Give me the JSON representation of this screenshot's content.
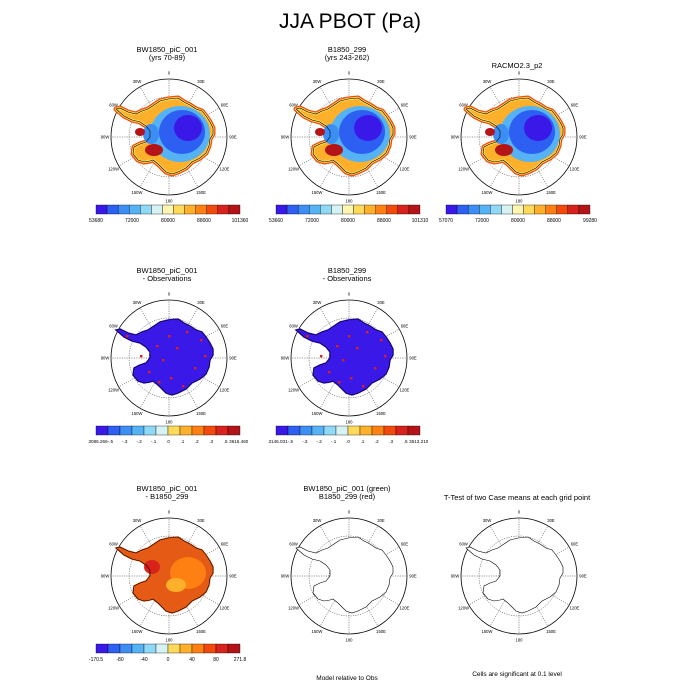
{
  "title": "JJA PBOT (Pa)",
  "lon_labels": [
    "0",
    "30E",
    "60E",
    "90E",
    "120E",
    "150E",
    "180",
    "150W",
    "120W",
    "90W",
    "60W",
    "30W"
  ],
  "colors": {
    "diverging": [
      "#3a18e8",
      "#2c5ff2",
      "#3c8ef4",
      "#55b3f5",
      "#8fd8f6",
      "#d6f2f2",
      "#fff5b0",
      "#ffd95a",
      "#ffb02a",
      "#ff8012",
      "#f24a0a",
      "#d8221c",
      "#b41418"
    ],
    "observations_fill": "#3a18e8",
    "difference_fill": "#e55a14"
  },
  "panels": [
    {
      "title": "BW1850_piC_001\n(yrs 70-89)",
      "kind": "model",
      "colorbar": [
        "53680",
        "72000",
        "80000",
        "88000",
        "101360"
      ]
    },
    {
      "title": "B1850_299\n(yrs 243-262)",
      "kind": "model",
      "colorbar": [
        "53660",
        "72000",
        "80000",
        "88000",
        "101310"
      ]
    },
    {
      "title": "RACMO2.3_p2",
      "kind": "model",
      "colorbar": [
        "57070",
        "72000",
        "80000",
        "88000",
        "99280"
      ]
    },
    {
      "title": "BW1850_piC_001\n- Observations",
      "kind": "obs",
      "colorbar": [
        "-13086.266",
        "-.5",
        "-.3",
        "-.2",
        "-.1",
        ".0",
        ".1",
        ".2",
        ".3",
        ".5",
        "3616.4609"
      ]
    },
    {
      "title": "B1850_299\n- Observations",
      "kind": "obs",
      "colorbar": [
        "-13146.031",
        "-.5",
        "-.3",
        "-.2",
        "-.1",
        ".0",
        ".1",
        ".2",
        ".3",
        ".5",
        "3513.2109"
      ]
    },
    {
      "title": "BW1850_piC_001\n- B1850_299",
      "kind": "diff",
      "colorbar": [
        "-170.5",
        "-80",
        "-40",
        "0",
        "40",
        "80",
        "271.8"
      ]
    },
    {
      "title": "BW1850_piC_001 (green)\nB1850_299 (red)",
      "kind": "outline",
      "note": "Model relative to Obs"
    },
    {
      "title": "T-Test of two Case means at each grid point",
      "kind": "outline",
      "note": "Cells are significant at 0.1 level"
    }
  ]
}
